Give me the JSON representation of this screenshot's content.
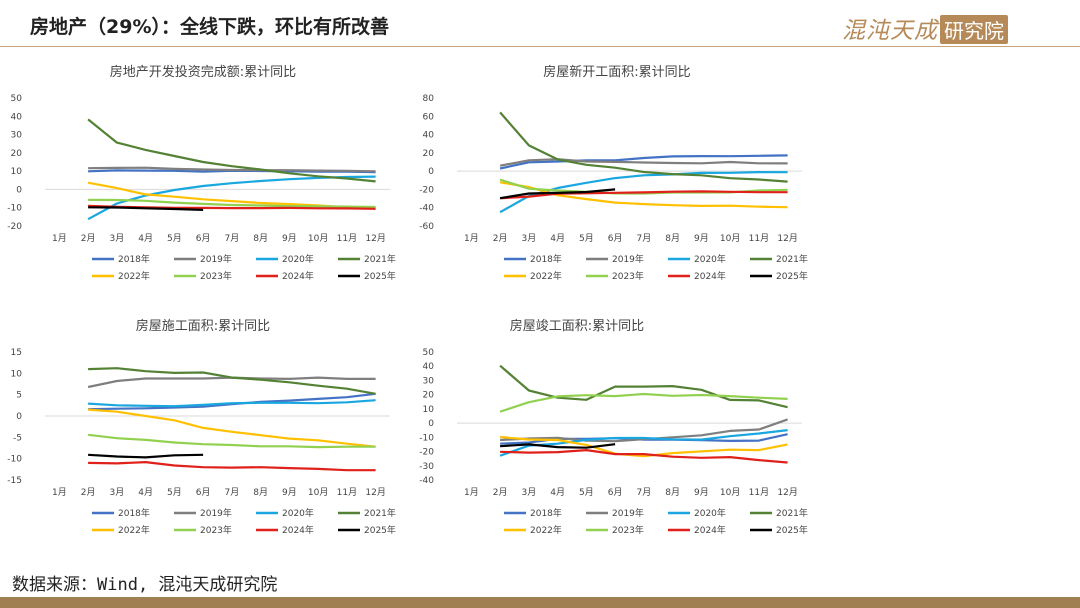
{
  "header": {
    "title": "房地产（29%）：全线下跌，环比有所改善",
    "logo_text": "混沌天成",
    "logo_box_text": "研究院"
  },
  "footer": {
    "source": "数据来源：Wind, 混沌天成研究院"
  },
  "colors": {
    "2018年": "#4472c4",
    "2019年": "#7f7f7f",
    "2020年": "#1aa7e0",
    "2021年": "#548235",
    "2022年": "#ffc000",
    "2023年": "#92d050",
    "2024年": "#e0201b",
    "2025年": "#000000",
    "accent": "#b58a58",
    "axis": "#d9d9d9"
  },
  "chart_data": [
    {
      "id": "chart1",
      "type": "line",
      "title": "房地产开发投资完成额:累计同比",
      "categories": [
        "1月",
        "2月",
        "3月",
        "4月",
        "5月",
        "6月",
        "7月",
        "8月",
        "9月",
        "10月",
        "11月",
        "12月"
      ],
      "ylim": [
        -20,
        50
      ],
      "yticks": [
        -20,
        -10,
        0,
        10,
        20,
        30,
        40,
        50
      ],
      "series": [
        {
          "name": "2018年",
          "values": [
            null,
            9.9,
            10.4,
            10.3,
            10.2,
            9.7,
            10.2,
            10.1,
            9.9,
            9.7,
            9.7,
            9.5
          ]
        },
        {
          "name": "2019年",
          "values": [
            null,
            11.6,
            11.8,
            11.9,
            11.2,
            10.9,
            10.6,
            10.5,
            10.5,
            10.3,
            10.2,
            9.9
          ]
        },
        {
          "name": "2020年",
          "values": [
            null,
            -16.3,
            -7.7,
            -3.3,
            -0.3,
            1.9,
            3.4,
            4.6,
            5.6,
            6.3,
            6.8,
            7.0
          ]
        },
        {
          "name": "2021年",
          "values": [
            null,
            38.3,
            25.6,
            21.6,
            18.3,
            15.0,
            12.7,
            10.9,
            8.8,
            7.2,
            6.0,
            4.4
          ]
        },
        {
          "name": "2022年",
          "values": [
            null,
            3.7,
            0.7,
            -2.7,
            -4.0,
            -5.4,
            -6.4,
            -7.4,
            -8.0,
            -8.8,
            -9.8,
            -10.0
          ]
        },
        {
          "name": "2023年",
          "values": [
            null,
            -5.7,
            -5.8,
            -6.2,
            -7.2,
            -7.9,
            -8.5,
            -8.8,
            -9.1,
            -9.3,
            -9.4,
            -9.6
          ]
        },
        {
          "name": "2024年",
          "values": [
            null,
            -9.0,
            -9.5,
            -9.8,
            -10.1,
            -10.1,
            -10.2,
            -10.2,
            -10.1,
            -10.3,
            -10.4,
            -10.6
          ]
        },
        {
          "name": "2025年",
          "values": [
            null,
            -9.8,
            -9.9,
            -10.3,
            -10.7,
            -11.2,
            null,
            null,
            null,
            null,
            null,
            null
          ]
        }
      ]
    },
    {
      "id": "chart2",
      "type": "line",
      "title": "房屋新开工面积:累计同比",
      "categories": [
        "1月",
        "2月",
        "3月",
        "4月",
        "5月",
        "6月",
        "7月",
        "8月",
        "9月",
        "10月",
        "11月",
        "12月"
      ],
      "ylim": [
        -60,
        80
      ],
      "yticks": [
        -60,
        -40,
        -20,
        0,
        20,
        40,
        60,
        80
      ],
      "series": [
        {
          "name": "2018年",
          "values": [
            null,
            2.9,
            9.7,
            10.5,
            11.8,
            11.8,
            14.4,
            16.1,
            16.4,
            16.3,
            16.8,
            17.2
          ]
        },
        {
          "name": "2019年",
          "values": [
            null,
            6.0,
            11.9,
            13.1,
            10.5,
            10.1,
            9.5,
            8.9,
            8.6,
            10.0,
            8.6,
            8.5
          ]
        },
        {
          "name": "2020年",
          "values": [
            null,
            -44.9,
            -27.2,
            -18.4,
            -12.8,
            -7.6,
            -4.5,
            -3.6,
            -1.9,
            -1.8,
            -1.0,
            -1.2
          ]
        },
        {
          "name": "2021年",
          "values": [
            null,
            64.3,
            28.2,
            12.8,
            6.9,
            3.8,
            -0.9,
            -3.2,
            -4.5,
            -7.7,
            -9.1,
            -11.4
          ]
        },
        {
          "name": "2022年",
          "values": [
            null,
            -12.2,
            -17.5,
            -26.3,
            -30.6,
            -34.4,
            -36.1,
            -37.2,
            -38.0,
            -37.8,
            -38.9,
            -39.4
          ]
        },
        {
          "name": "2023年",
          "values": [
            null,
            -9.4,
            -19.2,
            -21.2,
            -22.6,
            -24.3,
            -24.5,
            -23.4,
            -23.4,
            -23.2,
            -21.2,
            -20.4
          ]
        },
        {
          "name": "2024年",
          "values": [
            null,
            -29.7,
            -27.8,
            -24.6,
            -24.2,
            -23.7,
            -23.2,
            -22.5,
            -22.2,
            -22.6,
            -23.0,
            -23.0
          ]
        },
        {
          "name": "2025年",
          "values": [
            null,
            -29.6,
            -24.4,
            -23.8,
            -22.8,
            -20.0,
            null,
            null,
            null,
            null,
            null,
            null
          ]
        }
      ]
    },
    {
      "id": "chart3",
      "type": "line",
      "title": "房屋施工面积:累计同比",
      "categories": [
        "1月",
        "2月",
        "3月",
        "4月",
        "5月",
        "6月",
        "7月",
        "8月",
        "9月",
        "10月",
        "11月",
        "12月"
      ],
      "ylim": [
        -15,
        15
      ],
      "yticks": [
        -15,
        -10,
        -5,
        0,
        5,
        10,
        15
      ],
      "series": [
        {
          "name": "2018年",
          "values": [
            null,
            1.6,
            1.7,
            1.8,
            2.0,
            2.2,
            2.8,
            3.3,
            3.6,
            4.0,
            4.4,
            5.2
          ]
        },
        {
          "name": "2019年",
          "values": [
            null,
            6.8,
            8.2,
            8.8,
            8.8,
            8.8,
            9.0,
            8.8,
            8.7,
            9.0,
            8.7,
            8.7
          ]
        },
        {
          "name": "2020年",
          "values": [
            null,
            2.9,
            2.5,
            2.4,
            2.3,
            2.6,
            3.0,
            3.1,
            3.1,
            3.0,
            3.2,
            3.7
          ]
        },
        {
          "name": "2021年",
          "values": [
            null,
            11.0,
            11.2,
            10.5,
            10.1,
            10.2,
            9.0,
            8.5,
            7.9,
            7.1,
            6.4,
            5.2
          ]
        },
        {
          "name": "2022年",
          "values": [
            null,
            1.5,
            1.0,
            0.0,
            -1.0,
            -2.8,
            -3.7,
            -4.5,
            -5.3,
            -5.7,
            -6.5,
            -7.2
          ]
        },
        {
          "name": "2023年",
          "values": [
            null,
            -4.4,
            -5.2,
            -5.6,
            -6.2,
            -6.6,
            -6.8,
            -7.1,
            -7.1,
            -7.3,
            -7.2,
            -7.2
          ]
        },
        {
          "name": "2024年",
          "values": [
            null,
            -11.0,
            -11.1,
            -10.8,
            -11.6,
            -12.0,
            -12.1,
            -12.0,
            -12.2,
            -12.4,
            -12.7,
            -12.7
          ]
        },
        {
          "name": "2025年",
          "values": [
            null,
            -9.1,
            -9.5,
            -9.7,
            -9.2,
            -9.1,
            null,
            null,
            null,
            null,
            null,
            null
          ]
        }
      ]
    },
    {
      "id": "chart4",
      "type": "line",
      "title": "房屋竣工面积:累计同比",
      "categories": [
        "1月",
        "2月",
        "3月",
        "4月",
        "5月",
        "6月",
        "7月",
        "8月",
        "9月",
        "10月",
        "11月",
        "12月"
      ],
      "ylim": [
        -40,
        50
      ],
      "yticks": [
        -40,
        -30,
        -20,
        -10,
        0,
        10,
        20,
        30,
        40,
        50
      ],
      "series": [
        {
          "name": "2018年",
          "values": [
            null,
            -14.5,
            -13.6,
            -11.0,
            -11.1,
            -10.6,
            -11.6,
            -11.6,
            -12.0,
            -12.5,
            -12.3,
            -7.8
          ]
        },
        {
          "name": "2019年",
          "values": [
            null,
            -11.9,
            -10.8,
            -10.3,
            -12.4,
            -12.7,
            -11.3,
            -10.0,
            -8.6,
            -5.5,
            -4.5,
            2.6
          ]
        },
        {
          "name": "2020年",
          "values": [
            null,
            -22.9,
            -15.8,
            -14.5,
            -11.8,
            -10.5,
            -10.5,
            -11.4,
            -11.6,
            -9.2,
            -7.3,
            -4.9
          ]
        },
        {
          "name": "2021年",
          "values": [
            null,
            40.4,
            22.9,
            17.9,
            16.4,
            25.7,
            25.7,
            26.0,
            23.4,
            16.3,
            16.0,
            11.2
          ]
        },
        {
          "name": "2022年",
          "values": [
            null,
            -9.8,
            -11.5,
            -11.9,
            -15.3,
            -21.5,
            -23.3,
            -21.1,
            -19.9,
            -18.7,
            -19.0,
            -15.0
          ]
        },
        {
          "name": "2023年",
          "values": [
            null,
            8.0,
            14.7,
            18.8,
            19.6,
            19.0,
            20.5,
            19.2,
            19.8,
            19.0,
            17.9,
            17.0
          ]
        },
        {
          "name": "2024年",
          "values": [
            null,
            -20.2,
            -20.7,
            -20.4,
            -19.0,
            -21.8,
            -21.8,
            -23.6,
            -24.4,
            -23.9,
            -26.0,
            -27.7
          ]
        },
        {
          "name": "2025年",
          "values": [
            null,
            -16.2,
            -15.0,
            -16.9,
            -17.3,
            -14.8,
            null,
            null,
            null,
            null,
            null,
            null
          ]
        }
      ]
    }
  ],
  "legend_rows": [
    [
      "2018年",
      "2019年",
      "2020年",
      "2021年"
    ],
    [
      "2022年",
      "2023年",
      "2024年",
      "2025年"
    ]
  ]
}
